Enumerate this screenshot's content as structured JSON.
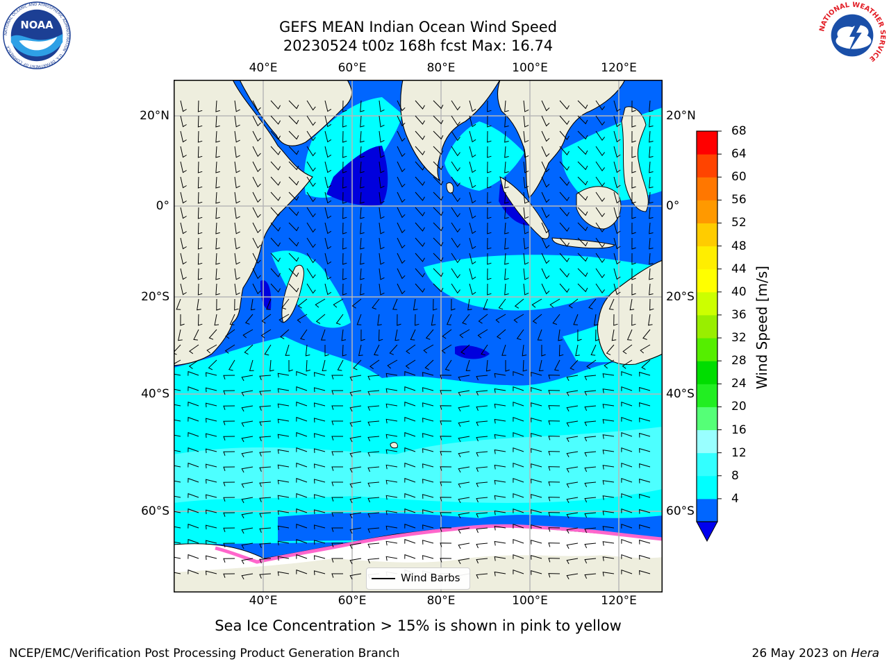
{
  "title": {
    "line1": "GEFS MEAN Indian Ocean Wind Speed",
    "line2": "20230524 t00z 168h fcst   Max: 16.74"
  },
  "map": {
    "lon_labels": [
      "40°E",
      "60°E",
      "80°E",
      "100°E",
      "120°E"
    ],
    "lat_labels": [
      "20°N",
      "0°",
      "20°S",
      "40°S",
      "60°S"
    ],
    "legend_label": "Wind Barbs",
    "colors": {
      "land": "#eeeede",
      "ice_land": "#ffffff",
      "wind_4_8": "#0066ff",
      "wind_8_12": "#00ffff",
      "wind_12_16": "#4dffff",
      "wind_lt_4": "#0000dd",
      "sea_ice": "#ff66cc"
    }
  },
  "colorbar": {
    "title": "Wind Speed [m/s]",
    "ticks": [
      "68",
      "64",
      "60",
      "56",
      "52",
      "48",
      "44",
      "40",
      "36",
      "32",
      "28",
      "24",
      "20",
      "16",
      "12",
      "8",
      "4"
    ],
    "colors_bottom_to_top": [
      "#0066ff",
      "#00ffff",
      "#33ffff",
      "#99ffff",
      "#55ff77",
      "#22ee22",
      "#00dd00",
      "#55ee00",
      "#99ee00",
      "#ccff00",
      "#ffff00",
      "#ffee00",
      "#ffcc00",
      "#ff9900",
      "#ff7700",
      "#ff4400",
      "#ff0000"
    ],
    "under_color": "#0000ee"
  },
  "sea_ice_note": "Sea Ice Concentration > 15% is shown in pink to yellow",
  "footer": {
    "left": "NCEP/EMC/Verification Post Processing Product Generation Branch",
    "right_date": "26 May 2023 on ",
    "right_machine": "Hera"
  },
  "logos": {
    "left_text": "NOAA",
    "left_ring_text": "NATIONAL OCEANIC AND ATMOSPHERIC ADMINISTRATION · U.S. DEPARTMENT OF COMMERCE",
    "right_ring_text": "NATIONAL WEATHER SERVICE"
  }
}
